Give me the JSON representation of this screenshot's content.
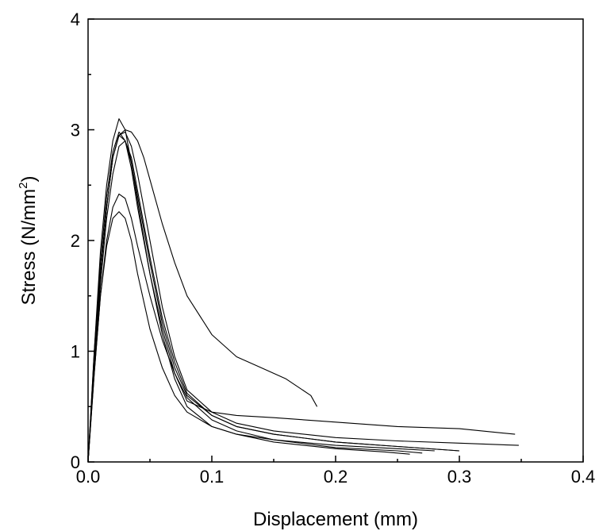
{
  "chart_data": {
    "type": "line",
    "title": "",
    "xlabel": "Displacement (mm)",
    "ylabel_main": "Stress (N/mm",
    "ylabel_sup": "2",
    "ylabel_close": ")",
    "xlim": [
      0.0,
      0.4
    ],
    "ylim": [
      0,
      4
    ],
    "x_ticks": [
      0.0,
      0.1,
      0.2,
      0.3,
      0.4
    ],
    "x_tick_labels": [
      "0.0",
      "0.1",
      "0.2",
      "0.3",
      "0.4"
    ],
    "y_ticks": [
      0,
      1,
      2,
      3,
      4
    ],
    "y_tick_labels": [
      "0",
      "1",
      "2",
      "3",
      "4"
    ],
    "grid": false,
    "line_color": "#000000",
    "series": [
      {
        "x": [
          0,
          0.005,
          0.01,
          0.015,
          0.02,
          0.025,
          0.03,
          0.035,
          0.04,
          0.05,
          0.06,
          0.07,
          0.08,
          0.1,
          0.12,
          0.15,
          0.18,
          0.2,
          0.25,
          0.28
        ],
        "y": [
          0,
          1.0,
          1.9,
          2.5,
          2.9,
          3.1,
          3.0,
          2.7,
          2.35,
          1.7,
          1.15,
          0.75,
          0.5,
          0.32,
          0.25,
          0.2,
          0.17,
          0.15,
          0.12,
          0.1
        ]
      },
      {
        "x": [
          0,
          0.005,
          0.01,
          0.015,
          0.02,
          0.025,
          0.03,
          0.035,
          0.04,
          0.05,
          0.06,
          0.07,
          0.08,
          0.1,
          0.12,
          0.15,
          0.2,
          0.25,
          0.3,
          0.345
        ],
        "y": [
          0,
          1.0,
          1.8,
          2.4,
          2.8,
          2.98,
          2.9,
          2.65,
          2.3,
          1.7,
          1.2,
          0.8,
          0.55,
          0.45,
          0.42,
          0.4,
          0.36,
          0.32,
          0.3,
          0.25
        ]
      },
      {
        "x": [
          0,
          0.005,
          0.01,
          0.015,
          0.02,
          0.025,
          0.03,
          0.035,
          0.04,
          0.05,
          0.06,
          0.07,
          0.08,
          0.1,
          0.12,
          0.15,
          0.2,
          0.25,
          0.3,
          0.348
        ],
        "y": [
          0,
          0.9,
          1.7,
          2.3,
          2.75,
          2.95,
          2.98,
          2.85,
          2.6,
          2.0,
          1.4,
          0.95,
          0.65,
          0.45,
          0.35,
          0.28,
          0.22,
          0.19,
          0.17,
          0.15
        ]
      },
      {
        "x": [
          0,
          0.005,
          0.01,
          0.015,
          0.02,
          0.025,
          0.03,
          0.035,
          0.04,
          0.05,
          0.06,
          0.07,
          0.08,
          0.1,
          0.12,
          0.15,
          0.2,
          0.25,
          0.3
        ],
        "y": [
          0,
          0.9,
          1.7,
          2.3,
          2.75,
          2.95,
          2.9,
          2.7,
          2.4,
          1.8,
          1.25,
          0.85,
          0.6,
          0.42,
          0.32,
          0.25,
          0.18,
          0.14,
          0.1
        ]
      },
      {
        "x": [
          0,
          0.005,
          0.01,
          0.015,
          0.02,
          0.025,
          0.03,
          0.035,
          0.04,
          0.045,
          0.05,
          0.06,
          0.07,
          0.08,
          0.1,
          0.12,
          0.14,
          0.16,
          0.18,
          0.185
        ],
        "y": [
          0,
          0.9,
          1.7,
          2.3,
          2.75,
          2.95,
          3.0,
          2.98,
          2.9,
          2.75,
          2.55,
          2.15,
          1.8,
          1.5,
          1.15,
          0.95,
          0.85,
          0.75,
          0.6,
          0.5
        ]
      },
      {
        "x": [
          0,
          0.005,
          0.01,
          0.015,
          0.02,
          0.025,
          0.03,
          0.035,
          0.04,
          0.05,
          0.06,
          0.07,
          0.08,
          0.1,
          0.12,
          0.15,
          0.2,
          0.25,
          0.27
        ],
        "y": [
          0,
          0.8,
          1.5,
          2.0,
          2.3,
          2.42,
          2.38,
          2.2,
          1.95,
          1.5,
          1.1,
          0.8,
          0.58,
          0.38,
          0.28,
          0.2,
          0.13,
          0.1,
          0.08
        ]
      },
      {
        "x": [
          0,
          0.005,
          0.01,
          0.015,
          0.02,
          0.025,
          0.03,
          0.035,
          0.04,
          0.05,
          0.06,
          0.07,
          0.08,
          0.1,
          0.12,
          0.15,
          0.2,
          0.24,
          0.26
        ],
        "y": [
          0,
          0.8,
          1.5,
          1.95,
          2.2,
          2.26,
          2.2,
          2.0,
          1.7,
          1.2,
          0.85,
          0.6,
          0.45,
          0.32,
          0.25,
          0.18,
          0.12,
          0.09,
          0.07
        ]
      },
      {
        "x": [
          0,
          0.005,
          0.01,
          0.015,
          0.02,
          0.025,
          0.03,
          0.035,
          0.04,
          0.05,
          0.06,
          0.07,
          0.08,
          0.1,
          0.12,
          0.15,
          0.2,
          0.25,
          0.3
        ],
        "y": [
          0,
          0.85,
          1.6,
          2.2,
          2.6,
          2.85,
          2.9,
          2.75,
          2.45,
          1.85,
          1.3,
          0.9,
          0.62,
          0.42,
          0.32,
          0.25,
          0.18,
          0.14,
          0.1
        ]
      }
    ]
  }
}
